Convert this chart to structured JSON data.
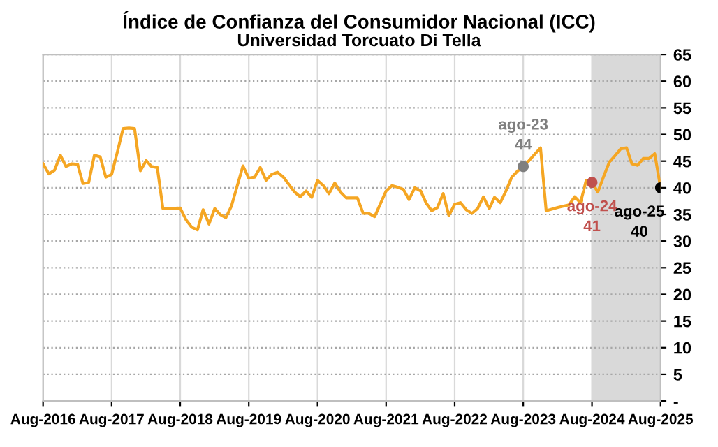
{
  "chart_data": {
    "type": "line",
    "title": "Índice de Confianza del Consumidor Nacional (ICC)",
    "subtitle": "Universidad Torcuato Di Tella",
    "series": [
      {
        "color": "#f5a623",
        "x": [
          "2016-08",
          "2016-09",
          "2016-10",
          "2016-11",
          "2016-12",
          "2017-01",
          "2017-02",
          "2017-03",
          "2017-04",
          "2017-05",
          "2017-06",
          "2017-07",
          "2017-08",
          "2017-09",
          "2017-10",
          "2017-11",
          "2017-12",
          "2018-01",
          "2018-02",
          "2018-03",
          "2018-04",
          "2018-05",
          "2018-06",
          "2018-08",
          "2018-09",
          "2018-10",
          "2018-11",
          "2018-12",
          "2019-01",
          "2019-02",
          "2019-03",
          "2019-04",
          "2019-05",
          "2019-07",
          "2019-08",
          "2019-09",
          "2019-10",
          "2019-11",
          "2019-12",
          "2020-01",
          "2020-02",
          "2020-04",
          "2020-05",
          "2020-06",
          "2020-07",
          "2020-08",
          "2020-09",
          "2020-10",
          "2020-11",
          "2020-12",
          "2021-01",
          "2021-03",
          "2021-04",
          "2021-05",
          "2021-06",
          "2021-08",
          "2021-09",
          "2021-10",
          "2021-11",
          "2021-12",
          "2022-01",
          "2022-02",
          "2022-03",
          "2022-04",
          "2022-05",
          "2022-06",
          "2022-07",
          "2022-08",
          "2022-09",
          "2022-10",
          "2022-11",
          "2022-12",
          "2023-01",
          "2023-02",
          "2023-03",
          "2023-04",
          "2023-05",
          "2023-06",
          "2023-07",
          "2023-08",
          "2023-09",
          "2023-11",
          "2023-12",
          "2024-02",
          "2024-04",
          "2024-05",
          "2024-06",
          "2024-07",
          "2024-08",
          "2024-09",
          "2024-10",
          "2024-11",
          "2024-12",
          "2025-01",
          "2025-02",
          "2025-03",
          "2025-04",
          "2025-05",
          "2025-06",
          "2025-07",
          "2025-08"
        ],
        "values": [
          44.5,
          42.6,
          43.3,
          46.1,
          44.0,
          44.5,
          44.4,
          40.8,
          41.0,
          46.1,
          45.8,
          42.0,
          42.5,
          46.8,
          51.1,
          51.2,
          51.1,
          43.2,
          45.1,
          44.0,
          43.8,
          36.1,
          36.1,
          36.2,
          34.0,
          32.6,
          32.1,
          35.9,
          33.2,
          36.1,
          35.0,
          34.4,
          36.6,
          44.1,
          41.8,
          42.0,
          43.8,
          41.4,
          42.5,
          42.9,
          42.0,
          39.2,
          38.3,
          39.4,
          38.2,
          41.4,
          40.4,
          38.9,
          40.9,
          39.2,
          38.1,
          38.1,
          35.2,
          35.2,
          34.6,
          39.4,
          40.4,
          40.1,
          39.7,
          37.8,
          40.0,
          39.4,
          37.2,
          35.7,
          36.3,
          38.9,
          34.8,
          36.9,
          37.2,
          35.9,
          35.2,
          36.1,
          38.3,
          36.1,
          38.2,
          37.2,
          39.4,
          42.0,
          43.1,
          44.0,
          45.1,
          47.5,
          35.7,
          36.3,
          36.8,
          38.3,
          37.2,
          41.4,
          41.0,
          39.2,
          42.0,
          44.8,
          46.0,
          47.3,
          47.5,
          44.5,
          44.2,
          45.5,
          45.5,
          46.4,
          40.0
        ]
      },
      {
        "type": "scatter",
        "x": [
          "2023-08",
          "2024-08",
          "2025-08"
        ],
        "values": [
          44,
          41,
          40
        ],
        "marker": "circle",
        "colors": [
          "#7f7f7f",
          "#c0504d",
          "#000000"
        ]
      }
    ],
    "annotations": [
      {
        "text": "ago-23\n44",
        "x": "2023-08",
        "y": 44
      },
      {
        "text": "ago-24\n41",
        "x": "2024-08",
        "y": 41
      },
      {
        "text": "ago-25\n40",
        "x": "2025-08",
        "y": 40
      }
    ],
    "bands": [
      {
        "axis": "x",
        "from": "2024-08",
        "to": "2025-08",
        "color": "#d9d9d9"
      }
    ],
    "xlim": [
      "2016-08",
      "2025-08"
    ],
    "xticks": [
      {
        "value": "2016-08",
        "label": "Aug-2016"
      },
      {
        "value": "2017-08",
        "label": "Aug-2017"
      },
      {
        "value": "2018-08",
        "label": "Aug-2018"
      },
      {
        "value": "2019-08",
        "label": "Aug-2019"
      },
      {
        "value": "2020-08",
        "label": "Aug-2020"
      },
      {
        "value": "2021-08",
        "label": "Aug-2021"
      },
      {
        "value": "2022-08",
        "label": "Aug-2022"
      },
      {
        "value": "2023-08",
        "label": "Aug-2023"
      },
      {
        "value": "2024-08",
        "label": "Aug-2024"
      },
      {
        "value": "2025-08",
        "label": "Aug-2025"
      }
    ],
    "ylim": [
      0,
      65
    ],
    "yticks": [
      {
        "value": 0,
        "label": "-"
      },
      5,
      10,
      15,
      20,
      25,
      30,
      35,
      40,
      45,
      50,
      55,
      60,
      65
    ],
    "grid": true,
    "line_style": "solid",
    "legend": false
  }
}
